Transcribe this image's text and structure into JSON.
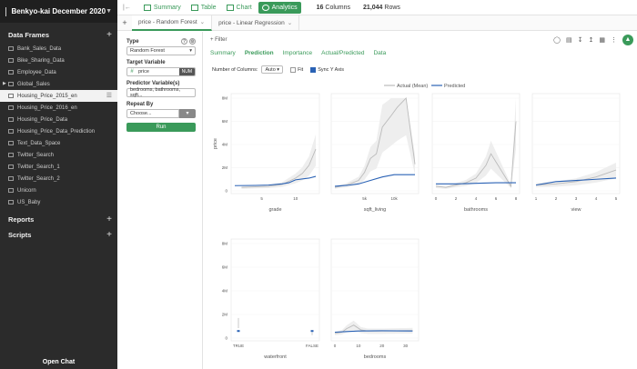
{
  "project": {
    "name": "Benkyo-kai December 2020"
  },
  "sidebar": {
    "data_frames_label": "Data Frames",
    "items": [
      {
        "label": "Bank_Sales_Data"
      },
      {
        "label": "Bike_Sharing_Data"
      },
      {
        "label": "Employee_Data"
      },
      {
        "label": "Global_Sales"
      },
      {
        "label": "Housing_Price_2015_en"
      },
      {
        "label": "Housing_Price_2016_en"
      },
      {
        "label": "Housing_Price_Data"
      },
      {
        "label": "Housing_Price_Data_Prediction"
      },
      {
        "label": "Text_Data_Space"
      },
      {
        "label": "Twitter_Search"
      },
      {
        "label": "Twitter_Search_1"
      },
      {
        "label": "Twitter_Search_2"
      },
      {
        "label": "Unicorn"
      },
      {
        "label": "US_Baby"
      }
    ],
    "reports_label": "Reports",
    "scripts_label": "Scripts",
    "open_chat": "Open Chat"
  },
  "topbar": {
    "views": [
      {
        "label": "Summary"
      },
      {
        "label": "Table"
      },
      {
        "label": "Chart"
      },
      {
        "label": "Analytics"
      }
    ],
    "columns_count": "16",
    "columns_label": "Columns",
    "rows_count": "21,044",
    "rows_label": "Rows"
  },
  "tabs": [
    {
      "label": "price - Random Forest"
    },
    {
      "label": "price - Linear Regression"
    }
  ],
  "left": {
    "type_label": "Type",
    "type_value": "Random Forest",
    "target_label": "Target Variable",
    "target_value": "price",
    "target_type": "NUM",
    "predictor_label": "Predictor Variable(s)",
    "predictor_value": "bedrooms, bathrooms, sqft...",
    "repeat_label": "Repeat By",
    "repeat_value": "Choose...",
    "run_label": "Run"
  },
  "main": {
    "filter_label": "Filter",
    "subtabs": [
      {
        "label": "Summary"
      },
      {
        "label": "Prediction"
      },
      {
        "label": "Importance"
      },
      {
        "label": "Actual/Predicted"
      },
      {
        "label": "Data"
      }
    ],
    "num_columns_label": "Number of Columns:",
    "num_columns_value": "Auto",
    "fit_label": "Fit",
    "sync_label": "Sync Y Axis"
  },
  "chart_data": {
    "type": "line",
    "ylabel": "price",
    "yticks": [
      "0",
      "2M",
      "4M",
      "6M",
      "8M"
    ],
    "ylim": [
      0,
      8000000
    ],
    "legend": [
      "Actual (Mean)",
      "Predicted"
    ],
    "series_colors": {
      "actual": "#bbbbbb",
      "predicted": "#2a62b5",
      "band": "#eeeeee"
    },
    "panels": [
      {
        "xlabel": "grade",
        "xticks": [
          "5",
          "10"
        ],
        "xlim": [
          1,
          13
        ],
        "actual": [
          [
            2,
            300000
          ],
          [
            4,
            350000
          ],
          [
            6,
            400000
          ],
          [
            8,
            550000
          ],
          [
            10,
            1100000
          ],
          [
            11,
            1500000
          ],
          [
            12,
            2200000
          ],
          [
            13,
            3600000
          ]
        ],
        "predicted": [
          [
            1,
            450000
          ],
          [
            4,
            470000
          ],
          [
            6,
            500000
          ],
          [
            8,
            600000
          ],
          [
            9,
            700000
          ],
          [
            10,
            950000
          ],
          [
            12,
            1100000
          ],
          [
            13,
            1250000
          ]
        ]
      },
      {
        "xlabel": "sqft_living",
        "xticks": [
          "5k",
          "10k"
        ],
        "xlim": [
          0,
          13500
        ],
        "actual": [
          [
            0,
            300000
          ],
          [
            2000,
            500000
          ],
          [
            4000,
            900000
          ],
          [
            5000,
            1600000
          ],
          [
            6000,
            2800000
          ],
          [
            7000,
            3200000
          ],
          [
            8000,
            5500000
          ],
          [
            9500,
            6500000
          ],
          [
            10500,
            7200000
          ],
          [
            12000,
            8000000
          ],
          [
            13500,
            2300000
          ]
        ],
        "predicted": [
          [
            0,
            400000
          ],
          [
            2500,
            500000
          ],
          [
            4000,
            600000
          ],
          [
            6000,
            900000
          ],
          [
            8000,
            1200000
          ],
          [
            10000,
            1400000
          ],
          [
            13500,
            1400000
          ]
        ]
      },
      {
        "xlabel": "bathrooms",
        "xticks": [
          "0",
          "2",
          "4",
          "6",
          "8"
        ],
        "xlim": [
          0,
          8
        ],
        "actual": [
          [
            0,
            400000
          ],
          [
            1,
            300000
          ],
          [
            2,
            500000
          ],
          [
            3,
            700000
          ],
          [
            4,
            1100000
          ],
          [
            5,
            2200000
          ],
          [
            5.5,
            3200000
          ],
          [
            6,
            2500000
          ],
          [
            6.5,
            1800000
          ],
          [
            7.5,
            400000
          ],
          [
            8,
            6000000
          ]
        ],
        "predicted": [
          [
            0,
            600000
          ],
          [
            2,
            600000
          ],
          [
            4,
            650000
          ],
          [
            6,
            700000
          ],
          [
            8,
            700000
          ]
        ]
      },
      {
        "xlabel": "view",
        "xticks": [
          "1",
          "2",
          "3",
          "4",
          "5"
        ],
        "xlim": [
          1,
          5
        ],
        "actual": [
          [
            1,
            500000
          ],
          [
            2,
            600000
          ],
          [
            3,
            800000
          ],
          [
            4,
            1200000
          ],
          [
            5,
            1800000
          ]
        ],
        "predicted": [
          [
            1,
            500000
          ],
          [
            2,
            800000
          ],
          [
            3,
            900000
          ],
          [
            4,
            1000000
          ],
          [
            5,
            1100000
          ]
        ]
      },
      {
        "xlabel": "waterfront",
        "xticks": [
          "TRUE",
          "FALSE"
        ],
        "xlim": [
          0,
          1
        ],
        "categorical": true,
        "actual": [
          [
            0,
            1700000
          ],
          [
            1,
            500000
          ]
        ],
        "predicted": [
          [
            0,
            600000
          ],
          [
            1,
            600000
          ]
        ]
      },
      {
        "xlabel": "bedrooms",
        "xticks": [
          "0",
          "10",
          "20",
          "30"
        ],
        "xlim": [
          0,
          34
        ],
        "actual": [
          [
            0,
            400000
          ],
          [
            3,
            500000
          ],
          [
            5,
            800000
          ],
          [
            8,
            1100000
          ],
          [
            11,
            700000
          ],
          [
            14,
            600000
          ],
          [
            20,
            600000
          ],
          [
            33,
            640000
          ]
        ],
        "predicted": [
          [
            0,
            500000
          ],
          [
            5,
            550000
          ],
          [
            10,
            600000
          ],
          [
            20,
            620000
          ],
          [
            33,
            600000
          ]
        ]
      }
    ]
  }
}
